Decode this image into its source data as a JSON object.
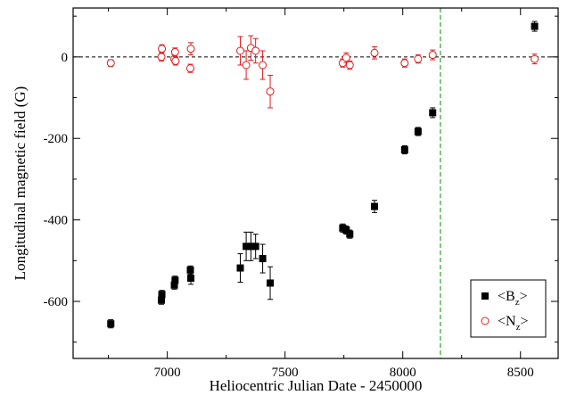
{
  "chart_data": {
    "type": "scatter",
    "title": "",
    "xlabel": "Heliocentric Julian Date - 2450000",
    "ylabel": "Longitudinal magnetic field (G)",
    "xlim": [
      6600,
      8660
    ],
    "ylim": [
      -740,
      120
    ],
    "xticks": [
      7000,
      7500,
      8000,
      8500
    ],
    "yticks": [
      -600,
      -400,
      -200,
      0
    ],
    "reference_lines": {
      "horizontal_y": 0,
      "vertical_x": 8160
    },
    "legend_position": "bottom-right",
    "series": [
      {
        "name": "<B_z>",
        "legend_main": "<B",
        "legend_sub": "z",
        "legend_end": ">",
        "marker": "filled-square",
        "color": "#000000",
        "points": [
          {
            "x": 6760,
            "y": -655,
            "err": 10
          },
          {
            "x": 6975,
            "y": -597,
            "err": 10
          },
          {
            "x": 6977,
            "y": -583,
            "err": 10
          },
          {
            "x": 7030,
            "y": -560,
            "err": 10
          },
          {
            "x": 7033,
            "y": -548,
            "err": 10
          },
          {
            "x": 7098,
            "y": -523,
            "err": 10
          },
          {
            "x": 7100,
            "y": -543,
            "err": 15
          },
          {
            "x": 7310,
            "y": -518,
            "err": 35
          },
          {
            "x": 7335,
            "y": -465,
            "err": 35
          },
          {
            "x": 7355,
            "y": -465,
            "err": 35
          },
          {
            "x": 7375,
            "y": -465,
            "err": 30
          },
          {
            "x": 7405,
            "y": -495,
            "err": 35
          },
          {
            "x": 7437,
            "y": -555,
            "err": 40
          },
          {
            "x": 7745,
            "y": -420,
            "err": 10
          },
          {
            "x": 7760,
            "y": -425,
            "err": 10
          },
          {
            "x": 7775,
            "y": -435,
            "err": 10
          },
          {
            "x": 7880,
            "y": -367,
            "err": 15
          },
          {
            "x": 8008,
            "y": -228,
            "err": 10
          },
          {
            "x": 8065,
            "y": -183,
            "err": 10
          },
          {
            "x": 8127,
            "y": -137,
            "err": 12
          },
          {
            "x": 8560,
            "y": 75,
            "err": 12
          }
        ]
      },
      {
        "name": "<N_z>",
        "legend_main": "<N",
        "legend_sub": "z",
        "legend_end": ">",
        "marker": "open-circle",
        "color": "#e41a1c",
        "points": [
          {
            "x": 6760,
            "y": -15,
            "err": 8
          },
          {
            "x": 6975,
            "y": 0,
            "err": 10
          },
          {
            "x": 6977,
            "y": 20,
            "err": 10
          },
          {
            "x": 7030,
            "y": -5,
            "err": 10
          },
          {
            "x": 7033,
            "y": 12,
            "err": 10
          },
          {
            "x": 7035,
            "y": -10,
            "err": 10
          },
          {
            "x": 7098,
            "y": -28,
            "err": 10
          },
          {
            "x": 7100,
            "y": 20,
            "err": 15
          },
          {
            "x": 7310,
            "y": 15,
            "err": 35
          },
          {
            "x": 7335,
            "y": -20,
            "err": 35
          },
          {
            "x": 7355,
            "y": 22,
            "err": 30
          },
          {
            "x": 7375,
            "y": 15,
            "err": 30
          },
          {
            "x": 7405,
            "y": -20,
            "err": 35
          },
          {
            "x": 7437,
            "y": -85,
            "err": 40
          },
          {
            "x": 7745,
            "y": -15,
            "err": 10
          },
          {
            "x": 7760,
            "y": -2,
            "err": 12
          },
          {
            "x": 7775,
            "y": -20,
            "err": 10
          },
          {
            "x": 7880,
            "y": 10,
            "err": 15
          },
          {
            "x": 8008,
            "y": -15,
            "err": 10
          },
          {
            "x": 8065,
            "y": -5,
            "err": 10
          },
          {
            "x": 8127,
            "y": 5,
            "err": 12
          },
          {
            "x": 8560,
            "y": -5,
            "err": 12
          }
        ]
      }
    ]
  }
}
